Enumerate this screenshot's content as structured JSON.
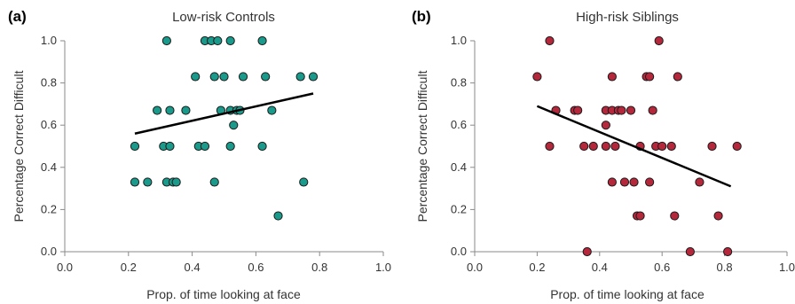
{
  "chart_data": [
    {
      "type": "scatter",
      "panel_label": "(a)",
      "title": "Low-risk Controls",
      "xlabel": "Prop. of time looking at face",
      "ylabel": "Percentage Correct Difficult",
      "xlim": [
        0.0,
        1.0
      ],
      "ylim": [
        0.0,
        1.0
      ],
      "xticks": [
        "0.0",
        "0.2",
        "0.4",
        "0.6",
        "0.8",
        "1.0"
      ],
      "yticks": [
        "0.0",
        "0.2",
        "0.4",
        "0.6",
        "0.8",
        "1.0"
      ],
      "grid": false,
      "point_color": "#1a9a8a",
      "points": [
        {
          "x": 0.22,
          "y": 0.5
        },
        {
          "x": 0.22,
          "y": 0.33
        },
        {
          "x": 0.26,
          "y": 0.33
        },
        {
          "x": 0.29,
          "y": 0.67
        },
        {
          "x": 0.31,
          "y": 0.5
        },
        {
          "x": 0.32,
          "y": 1.0
        },
        {
          "x": 0.32,
          "y": 0.33
        },
        {
          "x": 0.33,
          "y": 0.67
        },
        {
          "x": 0.33,
          "y": 0.5
        },
        {
          "x": 0.34,
          "y": 0.33
        },
        {
          "x": 0.35,
          "y": 0.33
        },
        {
          "x": 0.38,
          "y": 0.67
        },
        {
          "x": 0.41,
          "y": 0.83
        },
        {
          "x": 0.42,
          "y": 0.5
        },
        {
          "x": 0.44,
          "y": 0.5
        },
        {
          "x": 0.44,
          "y": 1.0
        },
        {
          "x": 0.46,
          "y": 1.0
        },
        {
          "x": 0.47,
          "y": 0.83
        },
        {
          "x": 0.47,
          "y": 0.33
        },
        {
          "x": 0.48,
          "y": 1.0
        },
        {
          "x": 0.49,
          "y": 0.67
        },
        {
          "x": 0.5,
          "y": 0.83
        },
        {
          "x": 0.52,
          "y": 1.0
        },
        {
          "x": 0.52,
          "y": 0.5
        },
        {
          "x": 0.52,
          "y": 0.67
        },
        {
          "x": 0.53,
          "y": 0.6
        },
        {
          "x": 0.54,
          "y": 0.67
        },
        {
          "x": 0.55,
          "y": 0.67
        },
        {
          "x": 0.56,
          "y": 0.83
        },
        {
          "x": 0.62,
          "y": 1.0
        },
        {
          "x": 0.62,
          "y": 0.5
        },
        {
          "x": 0.63,
          "y": 0.83
        },
        {
          "x": 0.65,
          "y": 0.67
        },
        {
          "x": 0.67,
          "y": 0.17
        },
        {
          "x": 0.74,
          "y": 0.83
        },
        {
          "x": 0.75,
          "y": 0.33
        },
        {
          "x": 0.78,
          "y": 0.83
        }
      ],
      "trendline": {
        "x": [
          0.22,
          0.78
        ],
        "y": [
          0.56,
          0.75
        ]
      }
    },
    {
      "type": "scatter",
      "panel_label": "(b)",
      "title": "High-risk Siblings",
      "xlabel": "Prop. of time looking at face",
      "ylabel": "Percentage Correct Difficult",
      "xlim": [
        0.0,
        1.0
      ],
      "ylim": [
        0.0,
        1.0
      ],
      "xticks": [
        "0.0",
        "0.2",
        "0.4",
        "0.6",
        "0.8",
        "1.0"
      ],
      "yticks": [
        "0.0",
        "0.2",
        "0.4",
        "0.6",
        "0.8",
        "1.0"
      ],
      "grid": false,
      "point_color": "#b5283c",
      "points": [
        {
          "x": 0.2,
          "y": 0.83
        },
        {
          "x": 0.24,
          "y": 1.0
        },
        {
          "x": 0.24,
          "y": 0.5
        },
        {
          "x": 0.26,
          "y": 0.67
        },
        {
          "x": 0.32,
          "y": 0.67
        },
        {
          "x": 0.33,
          "y": 0.67
        },
        {
          "x": 0.35,
          "y": 0.5
        },
        {
          "x": 0.36,
          "y": 0.0
        },
        {
          "x": 0.38,
          "y": 0.5
        },
        {
          "x": 0.42,
          "y": 0.67
        },
        {
          "x": 0.42,
          "y": 0.6
        },
        {
          "x": 0.42,
          "y": 0.5
        },
        {
          "x": 0.44,
          "y": 0.83
        },
        {
          "x": 0.44,
          "y": 0.33
        },
        {
          "x": 0.44,
          "y": 0.67
        },
        {
          "x": 0.45,
          "y": 0.5
        },
        {
          "x": 0.46,
          "y": 0.67
        },
        {
          "x": 0.47,
          "y": 0.67
        },
        {
          "x": 0.48,
          "y": 0.33
        },
        {
          "x": 0.5,
          "y": 0.67
        },
        {
          "x": 0.51,
          "y": 0.33
        },
        {
          "x": 0.52,
          "y": 0.17
        },
        {
          "x": 0.53,
          "y": 0.17
        },
        {
          "x": 0.53,
          "y": 0.5
        },
        {
          "x": 0.55,
          "y": 0.83
        },
        {
          "x": 0.56,
          "y": 0.83
        },
        {
          "x": 0.56,
          "y": 0.33
        },
        {
          "x": 0.57,
          "y": 0.67
        },
        {
          "x": 0.58,
          "y": 0.5
        },
        {
          "x": 0.59,
          "y": 1.0
        },
        {
          "x": 0.6,
          "y": 0.5
        },
        {
          "x": 0.63,
          "y": 0.5
        },
        {
          "x": 0.64,
          "y": 0.17
        },
        {
          "x": 0.65,
          "y": 0.83
        },
        {
          "x": 0.69,
          "y": 0.0
        },
        {
          "x": 0.72,
          "y": 0.33
        },
        {
          "x": 0.76,
          "y": 0.5
        },
        {
          "x": 0.78,
          "y": 0.17
        },
        {
          "x": 0.81,
          "y": 0.0
        },
        {
          "x": 0.84,
          "y": 0.5
        }
      ],
      "trendline": {
        "x": [
          0.2,
          0.82
        ],
        "y": [
          0.69,
          0.31
        ]
      }
    }
  ]
}
